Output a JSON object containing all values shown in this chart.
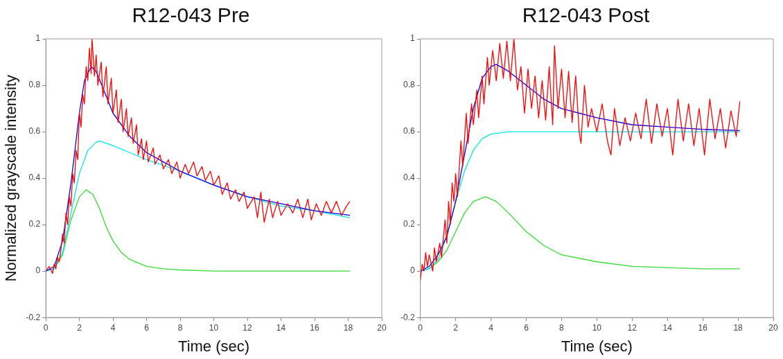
{
  "chart_data": [
    {
      "type": "line",
      "title": "R12-043 Pre",
      "xlabel": "Time (sec)",
      "ylabel": "Normalized grayscale intensity",
      "xlim": [
        0,
        20
      ],
      "xticks": [
        0,
        2,
        4,
        6,
        8,
        10,
        12,
        14,
        16,
        18,
        20
      ],
      "ylim": [
        -0.2,
        1
      ],
      "yticks": [
        -0.2,
        0,
        0.2,
        0.4,
        0.6,
        0.8,
        1
      ],
      "grid": false,
      "legend": false,
      "marker": "none",
      "line_style": "solid",
      "series": [
        {
          "color": "#ff0000",
          "x": [
            0,
            0.2,
            0.4,
            0.5,
            0.6,
            0.7,
            0.8,
            0.9,
            1.0,
            1.1,
            1.2,
            1.3,
            1.4,
            1.5,
            1.6,
            1.7,
            1.8,
            1.9,
            2.0,
            2.1,
            2.2,
            2.3,
            2.4,
            2.5,
            2.6,
            2.7,
            2.75,
            2.9,
            3.0,
            3.1,
            3.3,
            3.4,
            3.6,
            3.7,
            3.9,
            4.0,
            4.2,
            4.3,
            4.5,
            4.6,
            4.8,
            4.9,
            5.1,
            5.2,
            5.4,
            5.5,
            5.7,
            5.8,
            6.0,
            6.1,
            6.4,
            6.5,
            6.8,
            7.0,
            7.3,
            7.5,
            7.8,
            8.0,
            8.3,
            8.5,
            8.8,
            9.0,
            9.3,
            9.5,
            9.8,
            10.0,
            10.3,
            10.5,
            10.8,
            11.0,
            11.3,
            11.5,
            11.8,
            12.0,
            12.4,
            12.6,
            12.8,
            13.0,
            13.3,
            13.5,
            13.8,
            14.0,
            14.4,
            14.7,
            15.0,
            15.3,
            15.6,
            15.8,
            16.1,
            16.4,
            16.7,
            17.0,
            17.3,
            17.6,
            17.9,
            18.1
          ],
          "values": [
            0,
            0.02,
            -0.01,
            0.03,
            0.01,
            0.06,
            0.04,
            0.09,
            0.16,
            0.12,
            0.25,
            0.2,
            0.32,
            0.28,
            0.42,
            0.38,
            0.52,
            0.48,
            0.68,
            0.62,
            0.76,
            0.72,
            0.88,
            0.82,
            0.96,
            0.85,
            1.0,
            0.84,
            0.93,
            0.8,
            0.9,
            0.75,
            0.88,
            0.72,
            0.83,
            0.68,
            0.78,
            0.64,
            0.74,
            0.6,
            0.7,
            0.58,
            0.66,
            0.55,
            0.63,
            0.5,
            0.57,
            0.48,
            0.56,
            0.47,
            0.53,
            0.46,
            0.5,
            0.44,
            0.48,
            0.42,
            0.47,
            0.4,
            0.46,
            0.42,
            0.47,
            0.41,
            0.45,
            0.39,
            0.43,
            0.37,
            0.41,
            0.33,
            0.38,
            0.31,
            0.35,
            0.3,
            0.34,
            0.27,
            0.32,
            0.23,
            0.34,
            0.21,
            0.31,
            0.23,
            0.3,
            0.24,
            0.29,
            0.25,
            0.31,
            0.23,
            0.31,
            0.22,
            0.29,
            0.24,
            0.3,
            0.25,
            0.3,
            0.24,
            0.28,
            0.3
          ]
        },
        {
          "color": "#0000ff",
          "x": [
            0,
            0.5,
            1.0,
            1.5,
            2.0,
            2.3,
            2.7,
            3.0,
            3.5,
            4.0,
            5.0,
            6.0,
            7.0,
            8.0,
            10.0,
            12.0,
            14.0,
            16.0,
            18.1
          ],
          "values": [
            0,
            0.02,
            0.13,
            0.38,
            0.68,
            0.82,
            0.88,
            0.86,
            0.77,
            0.68,
            0.58,
            0.51,
            0.47,
            0.43,
            0.37,
            0.32,
            0.29,
            0.26,
            0.24
          ]
        },
        {
          "color": "#00e5ee",
          "x": [
            0,
            0.5,
            1.0,
            1.5,
            2.0,
            2.5,
            3.0,
            3.2,
            4.0,
            5.0,
            6.0,
            8.0,
            10.0,
            12.0,
            14.0,
            16.0,
            18.1
          ],
          "values": [
            0,
            0.01,
            0.08,
            0.25,
            0.42,
            0.52,
            0.555,
            0.56,
            0.54,
            0.51,
            0.48,
            0.43,
            0.37,
            0.32,
            0.28,
            0.26,
            0.23
          ]
        },
        {
          "color": "#33dd33",
          "x": [
            0,
            0.5,
            1.0,
            1.5,
            2.0,
            2.4,
            2.8,
            3.2,
            3.6,
            4.0,
            4.5,
            5.0,
            6.0,
            7.0,
            8.0,
            10.0,
            14.0,
            18.1
          ],
          "values": [
            0,
            0.01,
            0.07,
            0.22,
            0.32,
            0.35,
            0.33,
            0.27,
            0.19,
            0.13,
            0.08,
            0.05,
            0.02,
            0.01,
            0.005,
            0,
            0,
            0
          ]
        }
      ]
    },
    {
      "type": "line",
      "title": "R12-043 Post",
      "xlabel": "Time (sec)",
      "xlim": [
        0,
        20
      ],
      "xticks": [
        0,
        2,
        4,
        6,
        8,
        10,
        12,
        14,
        16,
        18,
        20
      ],
      "ylim": [
        -0.2,
        1
      ],
      "yticks": [
        -0.2,
        0,
        0.2,
        0.4,
        0.6,
        0.8,
        1
      ],
      "grid": false,
      "legend": false,
      "marker": "none",
      "line_style": "solid",
      "series": [
        {
          "color": "#ff0000",
          "x": [
            0,
            0.1,
            0.2,
            0.3,
            0.4,
            0.5,
            0.7,
            0.8,
            0.9,
            1.1,
            1.2,
            1.4,
            1.5,
            1.6,
            1.7,
            1.8,
            1.9,
            2.0,
            2.1,
            2.3,
            2.4,
            2.6,
            2.7,
            2.9,
            3.0,
            3.2,
            3.3,
            3.5,
            3.6,
            3.8,
            3.9,
            4.1,
            4.3,
            4.5,
            4.7,
            4.9,
            5.1,
            5.3,
            5.5,
            5.7,
            5.9,
            6.1,
            6.3,
            6.5,
            6.7,
            6.9,
            7.1,
            7.3,
            7.5,
            7.6,
            7.8,
            8.0,
            8.2,
            8.4,
            8.6,
            8.8,
            9.0,
            9.1,
            9.3,
            9.5,
            9.7,
            10.0,
            10.3,
            10.6,
            10.8,
            11.0,
            11.3,
            11.6,
            11.9,
            12.2,
            12.5,
            12.8,
            13.1,
            13.4,
            13.7,
            14.0,
            14.3,
            14.6,
            14.9,
            15.2,
            15.5,
            15.8,
            16.1,
            16.4,
            16.7,
            17.0,
            17.3,
            17.6,
            17.9,
            18.1
          ],
          "values": [
            -0.04,
            0.03,
            0.0,
            0.08,
            0.02,
            0.07,
            0.0,
            0.1,
            0.04,
            0.12,
            0.06,
            0.22,
            0.12,
            0.3,
            0.2,
            0.38,
            0.3,
            0.42,
            0.32,
            0.56,
            0.45,
            0.68,
            0.55,
            0.72,
            0.63,
            0.78,
            0.66,
            0.84,
            0.72,
            0.92,
            0.8,
            0.95,
            0.82,
            0.98,
            0.83,
            0.99,
            0.82,
            1.0,
            0.78,
            0.88,
            0.68,
            0.87,
            0.7,
            0.84,
            0.66,
            0.82,
            0.65,
            0.88,
            0.63,
            0.97,
            0.7,
            0.87,
            0.66,
            0.86,
            0.64,
            0.84,
            0.6,
            0.55,
            0.8,
            0.62,
            0.7,
            0.6,
            0.72,
            0.56,
            0.5,
            0.7,
            0.54,
            0.66,
            0.56,
            0.68,
            0.57,
            0.74,
            0.55,
            0.72,
            0.58,
            0.7,
            0.5,
            0.74,
            0.56,
            0.72,
            0.54,
            0.7,
            0.5,
            0.74,
            0.57,
            0.7,
            0.53,
            0.69,
            0.58,
            0.73
          ]
        },
        {
          "color": "#0000ff",
          "x": [
            0,
            0.5,
            1,
            1.5,
            2,
            2.5,
            3,
            3.5,
            4,
            4.3,
            5,
            6,
            7,
            8,
            9,
            10,
            12,
            14,
            16,
            18.1
          ],
          "values": [
            0,
            0.02,
            0.07,
            0.15,
            0.3,
            0.5,
            0.7,
            0.83,
            0.88,
            0.89,
            0.86,
            0.8,
            0.74,
            0.7,
            0.68,
            0.66,
            0.63,
            0.62,
            0.61,
            0.605
          ]
        },
        {
          "color": "#00e5ee",
          "x": [
            0,
            0.5,
            1,
            1.5,
            2,
            2.5,
            3,
            3.5,
            4,
            5,
            18.1
          ],
          "values": [
            0,
            0.01,
            0.05,
            0.15,
            0.3,
            0.43,
            0.52,
            0.57,
            0.59,
            0.6,
            0.6
          ]
        },
        {
          "color": "#33dd33",
          "x": [
            0,
            0.5,
            1,
            1.5,
            2,
            2.5,
            3,
            3.7,
            4.3,
            5,
            6,
            7,
            8,
            10,
            12,
            14,
            16,
            18.1
          ],
          "values": [
            0,
            0.01,
            0.04,
            0.09,
            0.17,
            0.25,
            0.3,
            0.32,
            0.3,
            0.25,
            0.17,
            0.11,
            0.07,
            0.04,
            0.02,
            0.015,
            0.01,
            0.01
          ]
        }
      ]
    }
  ]
}
